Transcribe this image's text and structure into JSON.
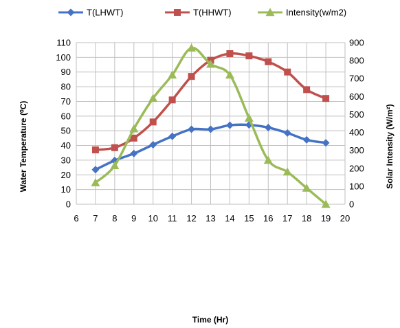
{
  "chart_data": {
    "type": "line",
    "x": [
      7,
      8,
      9,
      10,
      11,
      12,
      13,
      14,
      15,
      16,
      17,
      18,
      19
    ],
    "series": [
      {
        "name": "T(LHWT)",
        "axis": "left",
        "color": "#4472C4",
        "marker": "diamond",
        "values": [
          23.5,
          29.8,
          34.5,
          40.5,
          46.2,
          51.0,
          51.0,
          53.8,
          54.0,
          52.2,
          48.5,
          43.8,
          41.8
        ]
      },
      {
        "name": "T(HHWT)",
        "axis": "left",
        "color": "#C0504D",
        "marker": "square",
        "values": [
          37.0,
          38.5,
          45.0,
          56.0,
          71.0,
          87.0,
          98.0,
          102.5,
          101.0,
          97.0,
          90.0,
          78.0,
          72.0
        ]
      },
      {
        "name": "Intensity(w/m2)",
        "axis": "right",
        "color": "#9BBB59",
        "marker": "triangle",
        "values": [
          120,
          215,
          420,
          590,
          720,
          870,
          780,
          720,
          480,
          245,
          180,
          90,
          0
        ]
      }
    ],
    "xlabel": "Time (Hr)",
    "ylabel_left": "Water Temperature (⁰C)",
    "ylabel_right": "Solar Intensity (W/m²)",
    "xlim": [
      6,
      20
    ],
    "ylim_left": [
      0,
      110
    ],
    "ylim_right": [
      0,
      900
    ],
    "x_ticks": [
      6,
      7,
      8,
      9,
      10,
      11,
      12,
      13,
      14,
      15,
      16,
      17,
      18,
      19,
      20
    ],
    "y_ticks_left": [
      0,
      10,
      20,
      30,
      40,
      50,
      60,
      70,
      80,
      90,
      100,
      110
    ],
    "y_ticks_right": [
      0,
      100,
      200,
      300,
      400,
      500,
      600,
      700,
      800,
      900
    ],
    "grid": true,
    "legend_position": "top"
  }
}
